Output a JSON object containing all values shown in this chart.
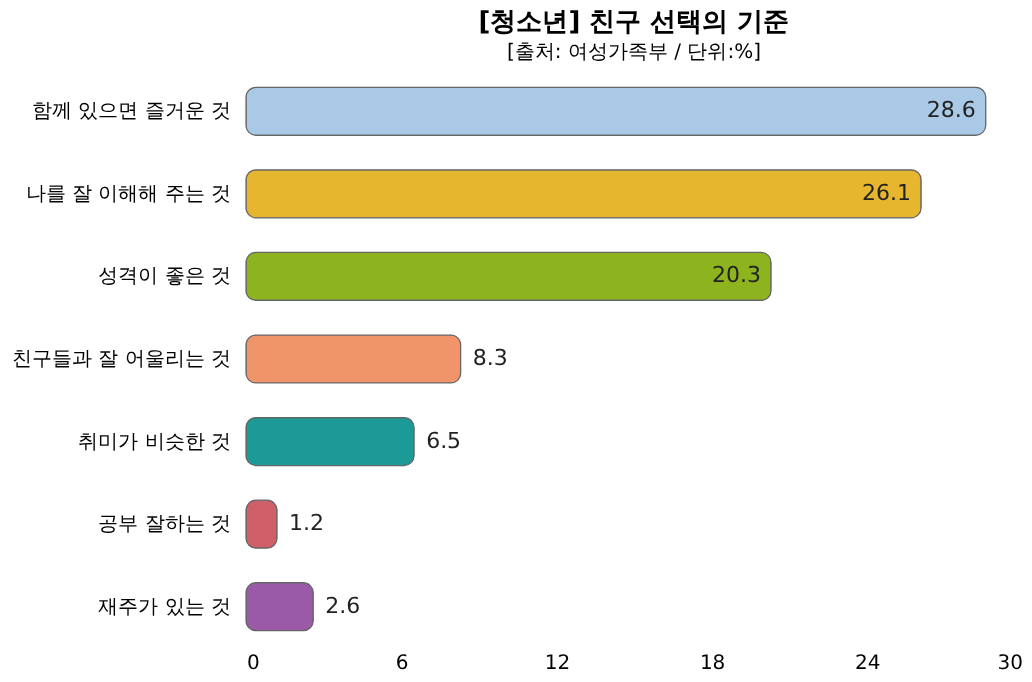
{
  "chart_data": {
    "type": "bar",
    "orientation": "horizontal",
    "title": "[청소년] 친구 선택의 기준",
    "subtitle": "[출처: 여성가족부 / 단위:%]",
    "categories": [
      "함께 있으면 즐거운 것",
      "나를 잘 이해해 주는 것",
      "성격이 좋은 것",
      "친구들과 잘 어울리는 것",
      "취미가 비슷한 것",
      "공부 잘하는 것",
      "재주가 있는 것"
    ],
    "values": [
      28.6,
      26.1,
      20.3,
      8.3,
      6.5,
      1.2,
      2.6
    ],
    "colors": [
      "#a9c9e6",
      "#e6b62e",
      "#8db41f",
      "#f0956a",
      "#1b9a97",
      "#cf5f68",
      "#9a5aa8"
    ],
    "xlim": [
      0,
      30
    ],
    "xticks": [
      0,
      6,
      12,
      18,
      24,
      30
    ],
    "grid": false,
    "data_labels": true
  }
}
